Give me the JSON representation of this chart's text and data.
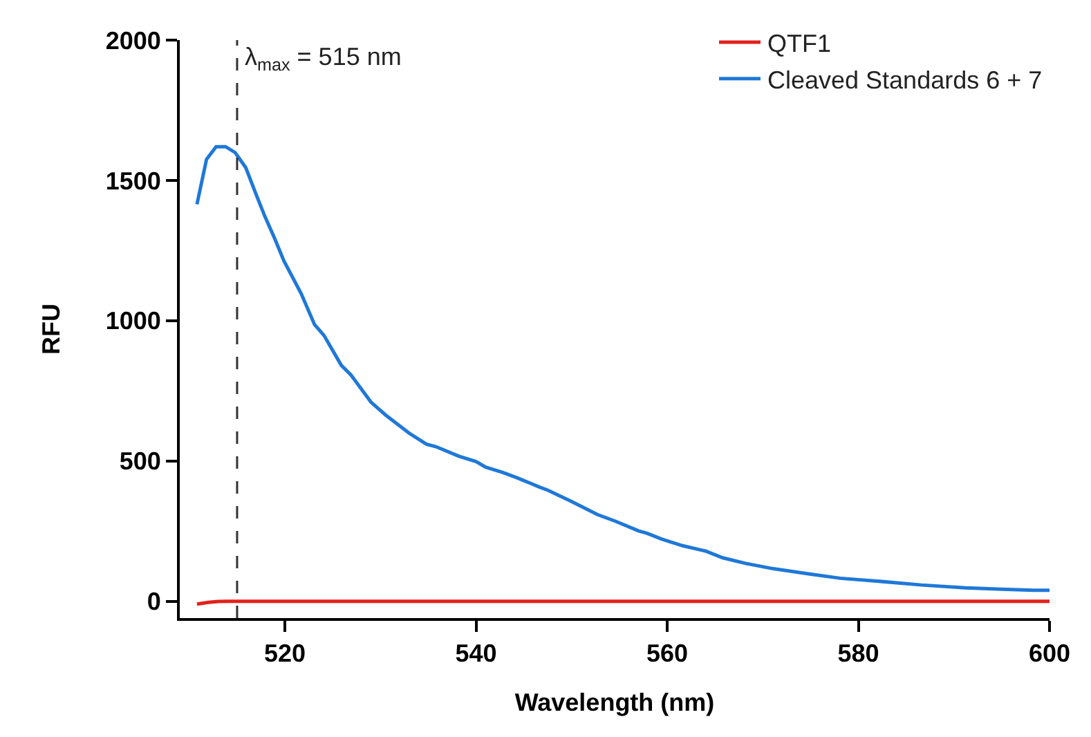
{
  "chart_data": {
    "type": "line",
    "xlabel": "Wavelength (nm)",
    "ylabel": "RFU",
    "xlim": [
      509,
      600
    ],
    "xticks": [
      520,
      540,
      560,
      580,
      600
    ],
    "ylim": [
      -60,
      2000
    ],
    "yticks": [
      0,
      500,
      1000,
      1500,
      2000
    ],
    "grid": false,
    "legend": "top right",
    "marker": "none",
    "line_style": "solid",
    "ref_lines": [
      {
        "axis": "x",
        "value": 515,
        "label": "λ$_{max}$ = 515 nm",
        "color": "#333333",
        "line_style": "dashed"
      }
    ],
    "series": [
      {
        "name": "QTF1",
        "color": "#e2211c",
        "x": [
          510.8,
          512,
          513,
          514,
          517,
          520,
          530,
          540,
          550,
          560,
          570,
          580,
          590,
          600
        ],
        "values": [
          -10,
          -4,
          -1,
          0,
          0,
          0,
          0,
          0,
          0,
          0,
          0,
          0,
          0,
          0
        ]
      },
      {
        "name": "Cleaved Standards 6 + 7",
        "color": "#1f78d8",
        "x": [
          510.8,
          511.8,
          512.8,
          513.8,
          514.8,
          515.9,
          517.0,
          517.9,
          518.9,
          519.9,
          521.7,
          523.1,
          524.1,
          525.9,
          526.9,
          529.0,
          530.6,
          533.0,
          534.8,
          535.8,
          538.2,
          540.0,
          541.0,
          542.8,
          544.3,
          546.7,
          547.5,
          549.9,
          552.7,
          554.6,
          557.0,
          557.9,
          559.4,
          561.6,
          564.0,
          565.8,
          568.2,
          571.1,
          574.9,
          578.1,
          581.9,
          586.6,
          591.2,
          595.0,
          598.3,
          600.0
        ],
        "values": [
          1415,
          1575,
          1620,
          1620,
          1599,
          1546,
          1449,
          1372,
          1295,
          1213,
          1097,
          986,
          947,
          841,
          807,
          710,
          662,
          599,
          560,
          551,
          517,
          498,
          478,
          459,
          440,
          406,
          396,
          357,
          309,
          285,
          251,
          242,
          222,
          198,
          179,
          155,
          135,
          116,
          97,
          82,
          72,
          58,
          48,
          43,
          39,
          39
        ]
      }
    ]
  }
}
